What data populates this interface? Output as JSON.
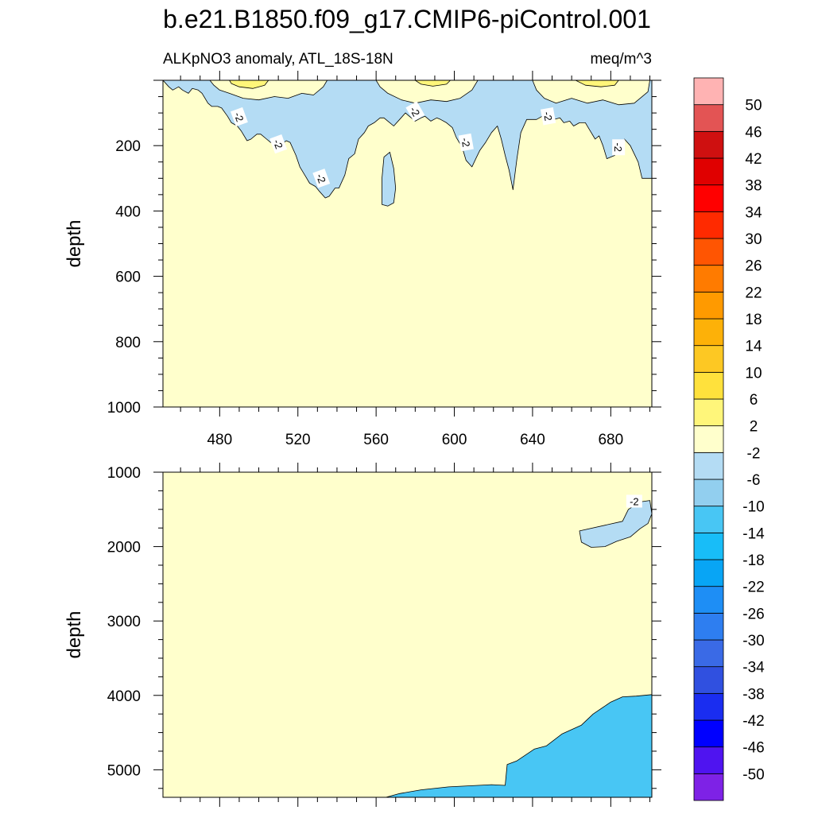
{
  "chart_data": {
    "type": "contour",
    "title": "b.e21.B1850.f09_g17.CMIP6-piControl.001",
    "left_subtitle": "ALKpNO3 anomaly, ATL_18S-18N",
    "right_subtitle": "meq/m^3",
    "panels": [
      {
        "name": "upper-ocean",
        "ylabel": "depth",
        "yrange": [
          0,
          1000
        ],
        "yreversed": true,
        "xrange": [
          451,
          701
        ],
        "yticks": [
          200,
          400,
          600,
          800,
          1000
        ],
        "xticks": [
          480,
          520,
          560,
          600,
          640,
          680
        ],
        "background_level_index": 11,
        "regions": [
          {
            "level_index": 12,
            "points": [
              [
                451,
                0
              ],
              [
                701,
                0
              ],
              [
                701,
                300
              ],
              [
                696,
                300
              ],
              [
                694,
                250
              ],
              [
                690,
                200
              ],
              [
                687,
                180
              ],
              [
                682,
                230
              ],
              [
                678,
                240
              ],
              [
                676,
                200
              ],
              [
                674,
                170
              ],
              [
                672,
                180
              ],
              [
                669,
                150
              ],
              [
                667,
                130
              ],
              [
                664,
                130
              ],
              [
                661,
                140
              ],
              [
                659,
                125
              ],
              [
                656,
                130
              ],
              [
                654,
                115
              ],
              [
                651,
                120
              ],
              [
                648,
                110
              ],
              [
                645,
                110
              ],
              [
                642,
                120
              ],
              [
                640,
                120
              ],
              [
                637,
                120
              ],
              [
                634,
                160
              ],
              [
                632,
                240
              ],
              [
                630,
                335
              ],
              [
                628,
                275
              ],
              [
                626,
                230
              ],
              [
                624,
                180
              ],
              [
                622,
                140
              ],
              [
                619,
                160
              ],
              [
                616,
                190
              ],
              [
                613,
                215
              ],
              [
                611,
                240
              ],
              [
                609,
                265
              ],
              [
                606,
                245
              ],
              [
                604,
                205
              ],
              [
                601,
                175
              ],
              [
                599,
                145
              ],
              [
                596,
                130
              ],
              [
                593,
                120
              ],
              [
                591,
                115
              ],
              [
                588,
                125
              ],
              [
                585,
                110
              ],
              [
                583,
                115
              ],
              [
                580,
                125
              ],
              [
                578,
                115
              ],
              [
                575,
                100
              ],
              [
                572,
                120
              ],
              [
                569,
                140
              ],
              [
                567,
                130
              ],
              [
                564,
                115
              ],
              [
                562,
                115
              ],
              [
                559,
                130
              ],
              [
                556,
                140
              ],
              [
                554,
                160
              ],
              [
                551,
                180
              ],
              [
                549,
                225
              ],
              [
                546,
                240
              ],
              [
                544,
                290
              ],
              [
                541,
                330
              ],
              [
                539,
                330
              ],
              [
                536,
                355
              ],
              [
                534,
                360
              ],
              [
                531,
                340
              ],
              [
                529,
                325
              ],
              [
                526,
                315
              ],
              [
                524,
                295
              ],
              [
                521,
                265
              ],
              [
                519,
                230
              ],
              [
                516,
                190
              ],
              [
                514,
                185
              ],
              [
                511,
                200
              ],
              [
                509,
                195
              ],
              [
                506,
                190
              ],
              [
                504,
                180
              ],
              [
                501,
                165
              ],
              [
                499,
                165
              ],
              [
                496,
                180
              ],
              [
                494,
                185
              ],
              [
                491,
                155
              ],
              [
                489,
                140
              ],
              [
                486,
                130
              ],
              [
                484,
                110
              ],
              [
                481,
                85
              ],
              [
                479,
                80
              ],
              [
                476,
                80
              ],
              [
                474,
                70
              ],
              [
                471,
                40
              ],
              [
                469,
                30
              ],
              [
                466,
                25
              ],
              [
                464,
                40
              ],
              [
                461,
                30
              ],
              [
                459,
                20
              ],
              [
                456,
                30
              ],
              [
                454,
                20
              ],
              [
                451,
                0
              ]
            ]
          },
          {
            "level_index": 12,
            "points": [
              [
                564,
                235
              ],
              [
                567,
                220
              ],
              [
                569,
                270
              ],
              [
                570,
                330
              ],
              [
                569,
                375
              ],
              [
                566,
                385
              ],
              [
                563,
                380
              ],
              [
                563,
                300
              ]
            ]
          },
          {
            "level_index": 13,
            "points": [
              [
                475,
                0
              ],
              [
                535,
                0
              ],
              [
                533,
                20
              ],
              [
                528,
                45
              ],
              [
                522,
                40
              ],
              [
                515,
                55
              ],
              [
                508,
                50
              ],
              [
                500,
                60
              ],
              [
                492,
                55
              ],
              [
                485,
                40
              ],
              [
                480,
                30
              ],
              [
                477,
                15
              ]
            ]
          },
          {
            "level_index": 13,
            "points": [
              [
                560,
                0
              ],
              [
                612,
                0
              ],
              [
                609,
                30
              ],
              [
                603,
                55
              ],
              [
                596,
                65
              ],
              [
                588,
                60
              ],
              [
                580,
                70
              ],
              [
                573,
                60
              ],
              [
                566,
                40
              ],
              [
                562,
                20
              ]
            ]
          },
          {
            "level_index": 13,
            "points": [
              [
                640,
                0
              ],
              [
                700,
                0
              ],
              [
                699,
                35
              ],
              [
                692,
                70
              ],
              [
                684,
                75
              ],
              [
                676,
                60
              ],
              [
                668,
                70
              ],
              [
                660,
                55
              ],
              [
                652,
                70
              ],
              [
                646,
                55
              ],
              [
                642,
                30
              ]
            ]
          },
          {
            "level_index": 14,
            "points": [
              [
                485,
                0
              ],
              [
                505,
                0
              ],
              [
                503,
                15
              ],
              [
                497,
                25
              ],
              [
                490,
                20
              ],
              [
                486,
                10
              ]
            ]
          },
          {
            "level_index": 14,
            "points": [
              [
                580,
                0
              ],
              [
                598,
                0
              ],
              [
                596,
                12
              ],
              [
                589,
                18
              ],
              [
                583,
                12
              ]
            ]
          },
          {
            "level_index": 14,
            "points": [
              [
                662,
                0
              ],
              [
                684,
                0
              ],
              [
                682,
                15
              ],
              [
                675,
                20
              ],
              [
                667,
                15
              ]
            ]
          }
        ],
        "contour_labels": [
          {
            "x": 490,
            "y": 112,
            "text": "-2",
            "angle": 70
          },
          {
            "x": 510,
            "y": 195,
            "text": "-2",
            "angle": 70
          },
          {
            "x": 532,
            "y": 300,
            "text": "-2",
            "angle": 70
          },
          {
            "x": 580,
            "y": 95,
            "text": "-2",
            "angle": 60
          },
          {
            "x": 606,
            "y": 190,
            "text": "-2",
            "angle": 80
          },
          {
            "x": 648,
            "y": 110,
            "text": "-2",
            "angle": 80
          },
          {
            "x": 684,
            "y": 205,
            "text": "-2",
            "angle": 90
          }
        ]
      },
      {
        "name": "deep-ocean",
        "ylabel": "depth",
        "yrange": [
          1000,
          5370
        ],
        "yreversed": true,
        "xrange": [
          451,
          701
        ],
        "yticks": [
          1000,
          2000,
          3000,
          4000,
          5000
        ],
        "xticks": [
          480,
          520,
          560,
          600,
          640,
          680
        ],
        "background_level_index": 11,
        "regions": [
          {
            "level_index": 12,
            "points": [
              [
                686,
                1660
              ],
              [
                689,
                1500
              ],
              [
                695,
                1400
              ],
              [
                700,
                1380
              ],
              [
                701,
                1560
              ],
              [
                699,
                1690
              ],
              [
                695,
                1760
              ],
              [
                690,
                1870
              ],
              [
                683,
                1930
              ],
              [
                677,
                2000
              ],
              [
                670,
                2010
              ],
              [
                665,
                1940
              ],
              [
                664,
                1790
              ]
            ]
          },
          {
            "level_index": 10,
            "points": [
              [
                565,
                5370
              ],
              [
                572,
                5320
              ],
              [
                583,
                5270
              ],
              [
                597,
                5230
              ],
              [
                619,
                5200
              ],
              [
                626,
                5210
              ],
              [
                627,
                4930
              ],
              [
                632,
                4880
              ],
              [
                641,
                4720
              ],
              [
                647,
                4680
              ],
              [
                655,
                4520
              ],
              [
                665,
                4400
              ],
              [
                671,
                4250
              ],
              [
                680,
                4090
              ],
              [
                686,
                4020
              ],
              [
                693,
                4010
              ],
              [
                701,
                3990
              ],
              [
                701,
                5370
              ]
            ]
          }
        ],
        "contour_labels": [
          {
            "x": 692,
            "y": 1390,
            "text": "-2",
            "angle": 0
          }
        ]
      }
    ],
    "colorbar": {
      "colors": [
        "#7e22e6",
        "#4f14f0",
        "#0000ff",
        "#1a2df0",
        "#3050e0",
        "#3a6ae6",
        "#2e7ef0",
        "#1e8ef5",
        "#08a5f5",
        "#18bdf8",
        "#48c6f4",
        "#92cfef",
        "#b4dcf4",
        "#ffffcc",
        "#fff67a",
        "#ffe13c",
        "#fdc823",
        "#fdb108",
        "#ff9a00",
        "#ff7b00",
        "#ff5502",
        "#ff2a00",
        "#ff0000",
        "#e00000",
        "#cf1010",
        "#e35454",
        "#ffb3b3"
      ],
      "labels": [
        "-50",
        "-46",
        "-42",
        "-38",
        "-34",
        "-30",
        "-26",
        "-22",
        "-18",
        "-14",
        "-10",
        "-6",
        "-2",
        "2",
        "6",
        "10",
        "14",
        "18",
        "22",
        "26",
        "30",
        "34",
        "38",
        "42",
        "46",
        "50"
      ]
    }
  }
}
